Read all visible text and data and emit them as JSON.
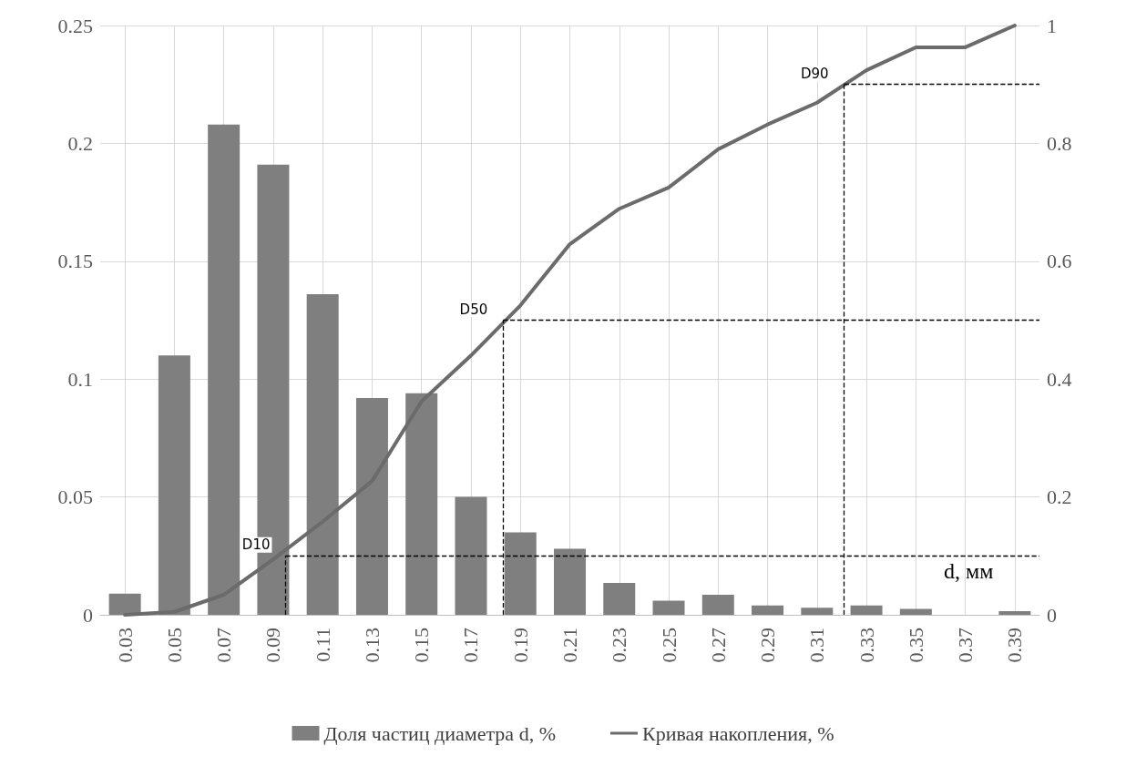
{
  "chart_data": {
    "type": "bar",
    "xlabel": "d, мм",
    "x": [
      0.03,
      0.05,
      0.07,
      0.09,
      0.11,
      0.13,
      0.15,
      0.17,
      0.19,
      0.21,
      0.23,
      0.25,
      0.27,
      0.29,
      0.31,
      0.33,
      0.35,
      0.37,
      0.39
    ],
    "series": [
      {
        "name": "Доля частиц диаметра d, %",
        "color": "#7f7f7f",
        "values": [
          0.009,
          0.11,
          0.208,
          0.191,
          0.136,
          0.092,
          0.094,
          0.05,
          0.035,
          0.028,
          0.0135,
          0.006,
          0.0085,
          0.004,
          0.003,
          0.004,
          0.0025,
          0,
          0.0015
        ]
      },
      {
        "name": "Кривая накопления, %",
        "type": "line",
        "axis": "y2",
        "color": "#6b6b6b",
        "values": [
          0,
          0.005,
          0.034,
          0.094,
          0.158,
          0.227,
          0.362,
          0.44,
          0.525,
          0.629,
          0.689,
          0.725,
          0.79,
          0.832,
          0.869,
          0.924,
          0.963,
          0.963,
          1.0
        ]
      }
    ],
    "xlim": [
      0.02,
      0.4
    ],
    "xticks": [
      0.03,
      0.05,
      0.07,
      0.09,
      0.11,
      0.13,
      0.15,
      0.17,
      0.19,
      0.21,
      0.23,
      0.25,
      0.27,
      0.29,
      0.31,
      0.33,
      0.35,
      0.37,
      0.39
    ],
    "ylim": [
      0,
      0.25
    ],
    "yticks": [
      0,
      0.05,
      0.1,
      0.15,
      0.2,
      0.25
    ],
    "y2lim": [
      0,
      1
    ],
    "y2ticks": [
      0,
      0.2,
      0.4,
      0.6,
      0.8,
      1
    ],
    "ref_lines": [
      {
        "axis": "x",
        "value": 0.095,
        "line_style": "dashed",
        "color": "#000000"
      },
      {
        "axis": "x",
        "value": 0.183,
        "line_style": "dashed",
        "color": "#000000"
      },
      {
        "axis": "x",
        "value": 0.321,
        "line_style": "dashed",
        "color": "#000000"
      },
      {
        "axis": "y2",
        "value": 0.1,
        "label": "D10",
        "line_style": "dashed",
        "color": "#000000"
      },
      {
        "axis": "y2",
        "value": 0.5,
        "label": "D50",
        "line_style": "dashed",
        "color": "#000000"
      },
      {
        "axis": "y2",
        "value": 0.9,
        "label": "D90",
        "line_style": "dashed",
        "color": "#000000"
      }
    ],
    "grid": true,
    "legend": "bottom",
    "marker": "none",
    "line_style": "solid"
  }
}
